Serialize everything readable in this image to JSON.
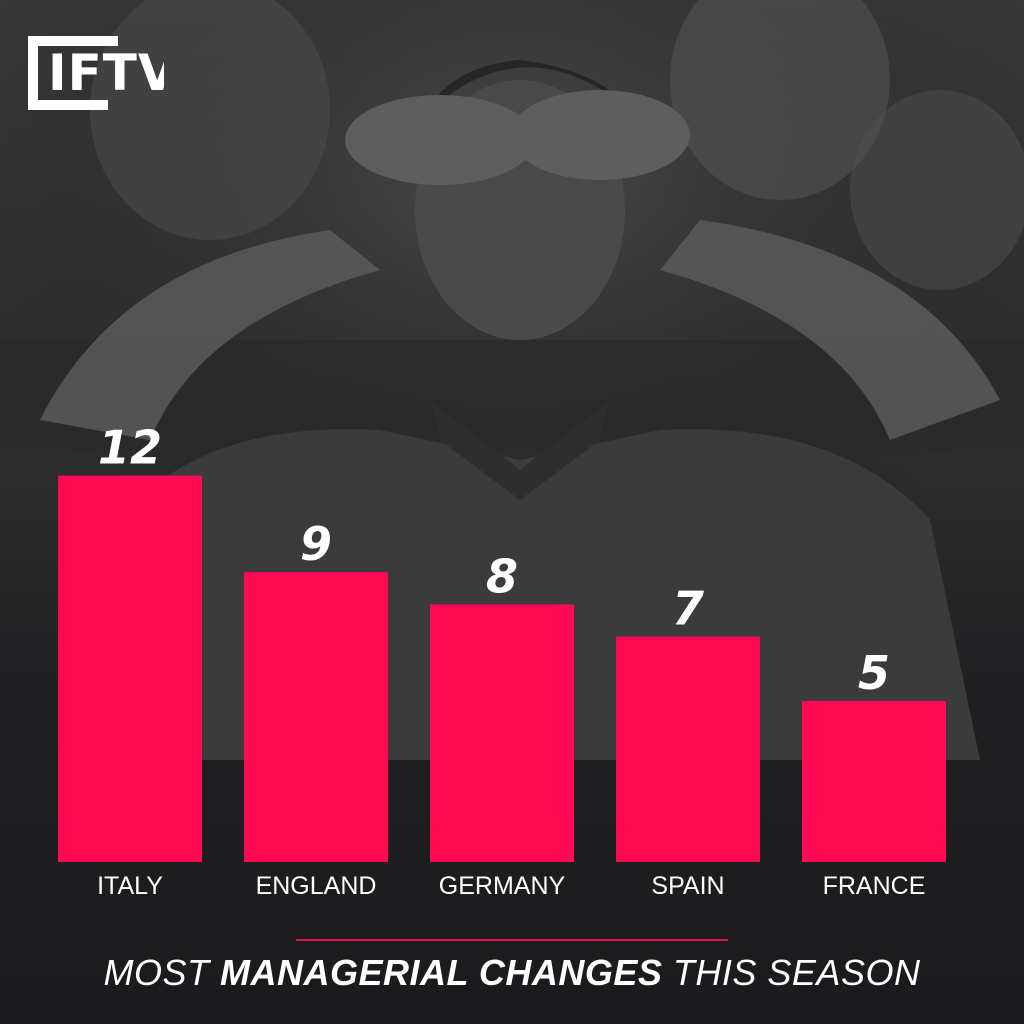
{
  "brand": {
    "logo_text": "IFTV"
  },
  "colors": {
    "bar": "#ff0a52",
    "accent_rule": "#e8134f",
    "background": "#1b1a1d",
    "text": "#ffffff"
  },
  "caption": {
    "part1": "MOST",
    "part2": "MANAGERIAL CHANGES",
    "part3": "THIS SEASON"
  },
  "chart_data": {
    "type": "bar",
    "categories": [
      "ITALY",
      "ENGLAND",
      "GERMANY",
      "SPAIN",
      "FRANCE"
    ],
    "values": [
      12,
      9,
      8,
      7,
      5
    ],
    "value_labels": [
      "12",
      "9",
      "8",
      "7",
      "5"
    ],
    "grid": false,
    "legend": "none"
  }
}
